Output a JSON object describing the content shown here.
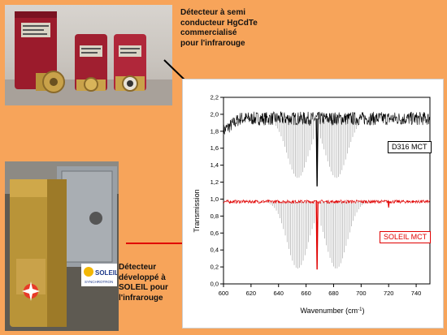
{
  "captions": {
    "top": "Détecteur à semi\nconducteur HgCdTe\ncommercialisé\npour l'infrarouge",
    "bottom": "Détecteur\ndéveloppé à\nSOLEIL pour\nl'infrarouge"
  },
  "logo": {
    "text": "SOLEIL",
    "subtext": "SYNCHROTRON"
  },
  "colors": {
    "background": "#f7a45a",
    "series_top": "#000000",
    "series_bottom": "#e00000",
    "reference": "#9a9a9a",
    "arrow_top": "#000000",
    "arrow_bottom": "#e00000"
  },
  "chart_data": {
    "type": "line",
    "xlabel": "Wavenumber (cm",
    "xlabel_sup": "-1",
    "xlabel_close": ")",
    "ylabel": "Transmission",
    "xlim": [
      600,
      750
    ],
    "ylim": [
      0.0,
      2.2
    ],
    "xticks": [
      600,
      620,
      640,
      660,
      680,
      700,
      720,
      740
    ],
    "yticks": [
      0.0,
      0.2,
      0.4,
      0.6,
      0.8,
      1.0,
      1.2,
      1.4,
      1.6,
      1.8,
      2.0,
      2.2
    ],
    "ytick_labels": [
      "0,0",
      "0,2",
      "0,4",
      "0,6",
      "0,8",
      "1,0",
      "1,2",
      "1,4",
      "1,6",
      "1,8",
      "2,0",
      "2,2"
    ],
    "grid": false,
    "series": [
      {
        "name": "D316 MCT",
        "color": "#000000",
        "baseline": 1.95,
        "noise_amplitude": 0.08,
        "deep_dip": {
          "x": 668,
          "y": 1.15
        },
        "ref_band": {
          "start": 638,
          "end": 698,
          "top": 1.95,
          "center_x": 668,
          "depth_min": 1.25
        }
      },
      {
        "name": "SOLEIL MCT",
        "color": "#e00000",
        "baseline": 0.97,
        "noise_amplitude": 0.02,
        "deep_dip": {
          "x": 668,
          "y": 0.17
        },
        "small_dip": {
          "x": 720,
          "y": 0.9
        },
        "ref_band": {
          "start": 628,
          "end": 712,
          "top": 0.97,
          "center_x": 668,
          "depth_min": 0.18
        }
      }
    ]
  }
}
